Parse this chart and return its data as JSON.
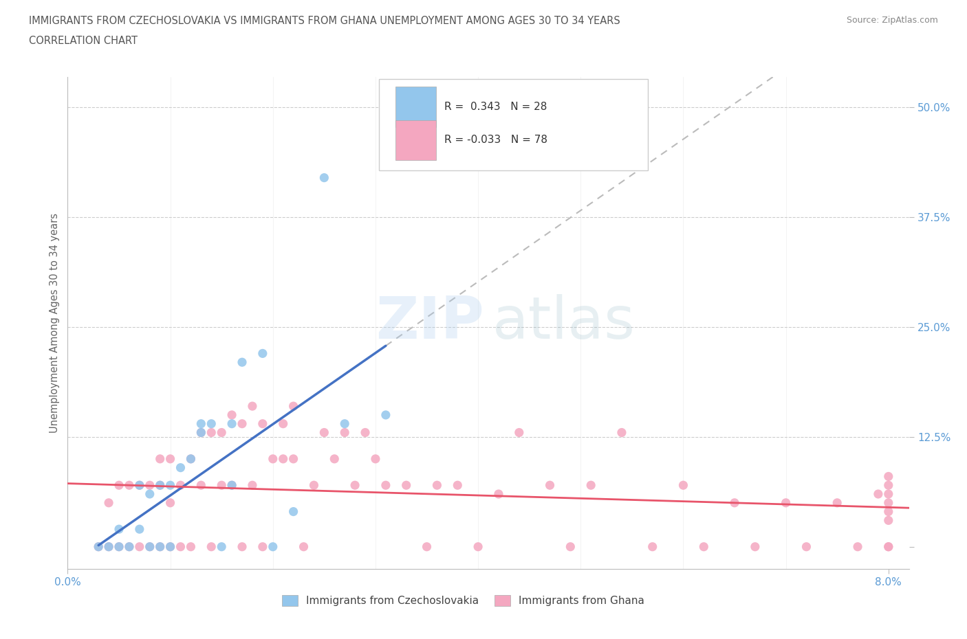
{
  "title_line1": "IMMIGRANTS FROM CZECHOSLOVAKIA VS IMMIGRANTS FROM GHANA UNEMPLOYMENT AMONG AGES 30 TO 34 YEARS",
  "title_line2": "CORRELATION CHART",
  "source_text": "Source: ZipAtlas.com",
  "ylabel": "Unemployment Among Ages 30 to 34 years",
  "xlim": [
    0.0,
    0.082
  ],
  "ylim": [
    -0.025,
    0.535
  ],
  "color_czech": "#93C6EC",
  "color_ghana": "#F4A7C0",
  "color_trend_czech": "#4472C4",
  "color_trend_ghana": "#E8546A",
  "color_trend_ext": "#BBBBBB",
  "r_czech": 0.343,
  "n_czech": 28,
  "r_ghana": -0.033,
  "n_ghana": 78,
  "title_color": "#555555",
  "axis_color": "#5B9BD5",
  "czech_x": [
    0.003,
    0.004,
    0.005,
    0.005,
    0.006,
    0.007,
    0.007,
    0.008,
    0.008,
    0.009,
    0.009,
    0.01,
    0.01,
    0.011,
    0.012,
    0.013,
    0.013,
    0.014,
    0.015,
    0.016,
    0.016,
    0.017,
    0.019,
    0.02,
    0.022,
    0.025,
    0.027,
    0.031
  ],
  "czech_y": [
    0.0,
    0.0,
    0.0,
    0.02,
    0.0,
    0.02,
    0.07,
    0.0,
    0.06,
    0.0,
    0.07,
    0.0,
    0.07,
    0.09,
    0.1,
    0.13,
    0.14,
    0.14,
    0.0,
    0.07,
    0.14,
    0.21,
    0.22,
    0.0,
    0.04,
    0.42,
    0.14,
    0.15
  ],
  "ghana_x": [
    0.003,
    0.004,
    0.004,
    0.005,
    0.005,
    0.006,
    0.006,
    0.007,
    0.007,
    0.008,
    0.008,
    0.009,
    0.009,
    0.009,
    0.01,
    0.01,
    0.01,
    0.011,
    0.011,
    0.012,
    0.012,
    0.013,
    0.013,
    0.014,
    0.014,
    0.015,
    0.015,
    0.016,
    0.016,
    0.017,
    0.017,
    0.018,
    0.018,
    0.019,
    0.019,
    0.02,
    0.021,
    0.021,
    0.022,
    0.022,
    0.023,
    0.024,
    0.025,
    0.026,
    0.027,
    0.028,
    0.029,
    0.03,
    0.031,
    0.033,
    0.035,
    0.036,
    0.038,
    0.04,
    0.042,
    0.044,
    0.047,
    0.049,
    0.051,
    0.054,
    0.057,
    0.06,
    0.062,
    0.065,
    0.067,
    0.07,
    0.072,
    0.075,
    0.077,
    0.079,
    0.08,
    0.08,
    0.08,
    0.08,
    0.08,
    0.08,
    0.08,
    0.08
  ],
  "ghana_y": [
    0.0,
    0.0,
    0.05,
    0.0,
    0.07,
    0.0,
    0.07,
    0.0,
    0.07,
    0.0,
    0.07,
    0.0,
    0.07,
    0.1,
    0.0,
    0.05,
    0.1,
    0.0,
    0.07,
    0.0,
    0.1,
    0.07,
    0.13,
    0.0,
    0.13,
    0.07,
    0.13,
    0.07,
    0.15,
    0.0,
    0.14,
    0.07,
    0.16,
    0.0,
    0.14,
    0.1,
    0.1,
    0.14,
    0.1,
    0.16,
    0.0,
    0.07,
    0.13,
    0.1,
    0.13,
    0.07,
    0.13,
    0.1,
    0.07,
    0.07,
    0.0,
    0.07,
    0.07,
    0.0,
    0.06,
    0.13,
    0.07,
    0.0,
    0.07,
    0.13,
    0.0,
    0.07,
    0.0,
    0.05,
    0.0,
    0.05,
    0.0,
    0.05,
    0.0,
    0.06,
    0.07,
    0.05,
    0.03,
    0.0,
    0.08,
    0.06,
    0.04,
    0.0
  ]
}
